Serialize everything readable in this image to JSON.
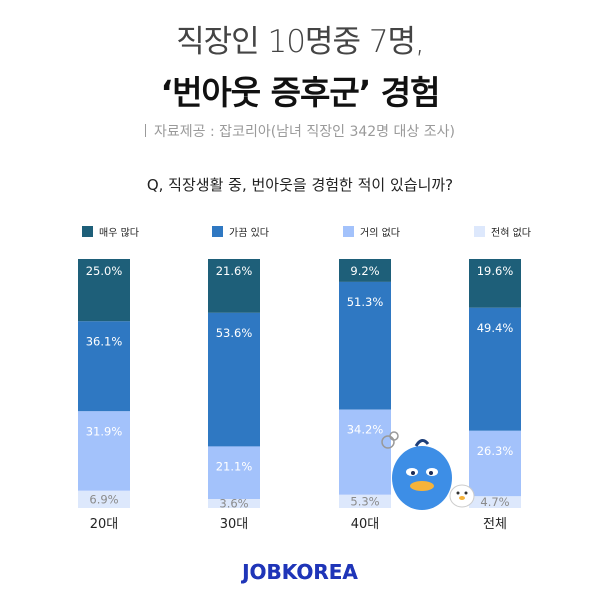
{
  "title_line1": "직장인 10명중 7명,",
  "title_line2": "‘번아웃 증후군’ 경험",
  "source": "자료제공 : 잡코리아(남녀 직장인 342명 대상 조사)",
  "question": "Q, 직장생활 중, 번아웃을 경험한 적이 있습니까?",
  "logo": "JOBKOREA",
  "chart_data": {
    "type": "bar",
    "stacked": true,
    "percent": true,
    "categories": [
      "20대",
      "30대",
      "40대",
      "전체"
    ],
    "series": [
      {
        "name": "매우 많다",
        "color": "#1e5f79",
        "values": [
          25.0,
          21.6,
          9.2,
          19.6
        ]
      },
      {
        "name": "가끔 있다",
        "color": "#2f78c2",
        "values": [
          36.1,
          53.6,
          51.3,
          49.4
        ]
      },
      {
        "name": "거의 없다",
        "color": "#a3c2fb",
        "values": [
          31.9,
          21.1,
          34.2,
          26.3
        ]
      },
      {
        "name": "전혀 없다",
        "color": "#dde8fc",
        "values": [
          6.9,
          3.6,
          5.3,
          4.7
        ]
      }
    ],
    "value_labels": [
      [
        "25.0%",
        "21.6%",
        "9.2%",
        "19.6%"
      ],
      [
        "36.1%",
        "53.6%",
        "51.3%",
        "49.4%"
      ],
      [
        "31.9%",
        "21.1%",
        "34.2%",
        "26.3%"
      ],
      [
        "6.9%",
        "3.6%",
        "5.3%",
        "4.7%"
      ]
    ],
    "legend": "top"
  }
}
